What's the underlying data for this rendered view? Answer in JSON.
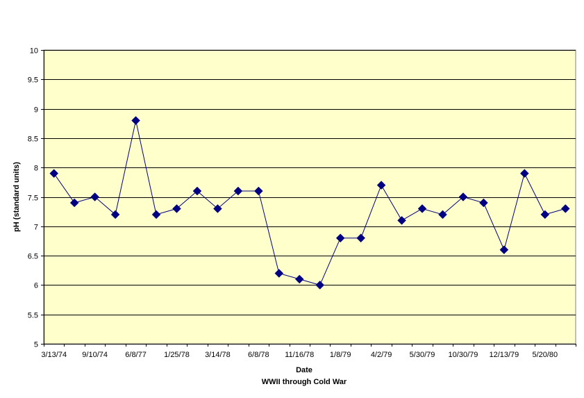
{
  "chart_data": {
    "type": "line",
    "title": "",
    "xlabel": "Date",
    "xlabel_sub": "WWII through Cold War",
    "ylabel": "pH (standard units)",
    "ylim": [
      5,
      10
    ],
    "y_ticks": [
      5,
      5.5,
      6,
      6.5,
      7,
      7.5,
      8,
      8.5,
      9,
      9.5,
      10
    ],
    "y_tick_labels": [
      "5",
      "5.5",
      "6",
      "6.5",
      "7",
      "7.5",
      "8",
      "8.5",
      "9",
      "9.5",
      "10"
    ],
    "x_tick_labels": [
      "3/13/74",
      "9/10/74",
      "6/8/77",
      "1/25/78",
      "3/14/78",
      "6/8/78",
      "11/16/78",
      "1/8/79",
      "4/2/79",
      "5/30/79",
      "10/30/79",
      "12/13/79",
      "5/20/80"
    ],
    "grid": true,
    "legend": "none",
    "colors": {
      "plot_background": "#FFFFCC",
      "series_line": "#000080",
      "marker": "#000080",
      "gridline": "#000000"
    },
    "series": [
      {
        "values": [
          7.9,
          7.4,
          7.5,
          7.2,
          8.8,
          7.2,
          7.3,
          7.6,
          7.3,
          7.6,
          7.6,
          6.2,
          6.1,
          6.0,
          6.8,
          6.8,
          7.7,
          7.1,
          7.3,
          7.2,
          7.5,
          7.4,
          6.6,
          7.9,
          7.2,
          7.3
        ]
      }
    ]
  }
}
